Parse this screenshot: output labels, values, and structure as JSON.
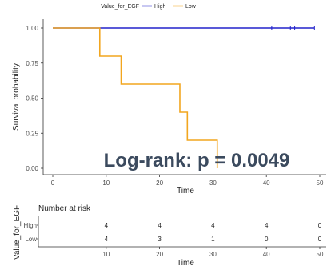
{
  "chart_data": {
    "type": "line",
    "subtype": "kaplan-meier",
    "legend": {
      "title": "Value_for_EGF",
      "position": "top",
      "entries": [
        {
          "name": "High",
          "color": "#2222cc"
        },
        {
          "name": "Low",
          "color": "#f2a61f"
        }
      ]
    },
    "xlabel": "Time",
    "ylabel": "Survival probability",
    "xlim": [
      -2,
      52
    ],
    "ylim": [
      -0.03,
      1.08
    ],
    "xticks": [
      0,
      10,
      20,
      30,
      40,
      50
    ],
    "yticks": [
      0.0,
      0.25,
      0.5,
      0.75,
      1.0
    ],
    "ytick_labels": [
      "0.00",
      "0.25",
      "0.50",
      "0.75",
      "1.00"
    ],
    "series": [
      {
        "name": "High",
        "color": "#2222cc",
        "steps": [
          [
            0,
            1.0
          ],
          [
            49,
            1.0
          ]
        ],
        "censor_times": [
          41,
          44.5,
          45.3,
          49
        ]
      },
      {
        "name": "Low",
        "color": "#f2a61f",
        "steps": [
          [
            0,
            1.0
          ],
          [
            8.8,
            0.8
          ],
          [
            12.8,
            0.6
          ],
          [
            23.8,
            0.4
          ],
          [
            25.2,
            0.2
          ],
          [
            30.8,
            0.0
          ]
        ],
        "censor_times": []
      }
    ],
    "annotation": "Log-rank: p = 0.0049",
    "risk_table": {
      "title": "Number at risk",
      "ylabel": "Value_for_EGF",
      "xlabel": "Time",
      "time_points": [
        0,
        10,
        20,
        30,
        40,
        50
      ],
      "visible_ticks": [
        10,
        20,
        30,
        40,
        50
      ],
      "rows": [
        {
          "name": "High",
          "color": "#2222cc",
          "counts": [
            4,
            4,
            4,
            4,
            0
          ]
        },
        {
          "name": "Low",
          "color": "#f2a61f",
          "counts": [
            4,
            3,
            1,
            0,
            0
          ]
        }
      ]
    },
    "grid": false
  }
}
